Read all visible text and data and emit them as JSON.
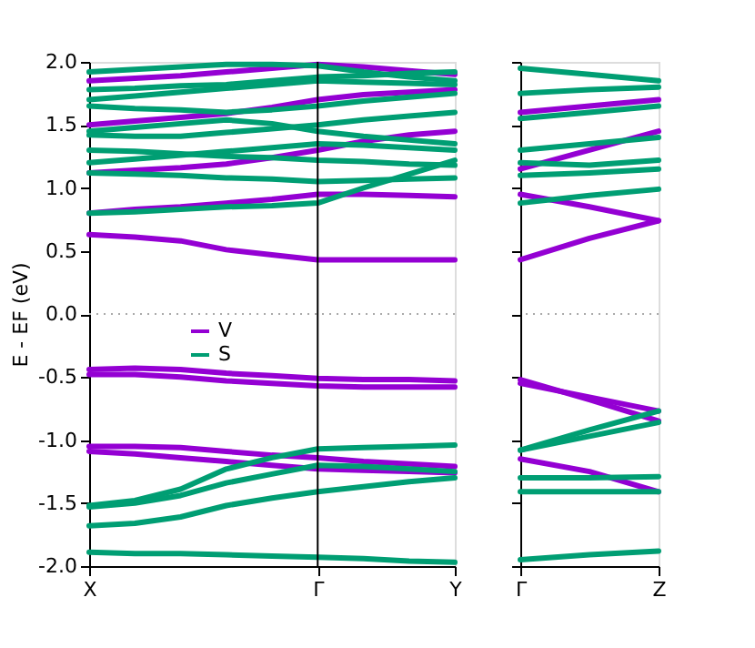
{
  "chart_data": [
    {
      "type": "line",
      "ylabel": "E - EF (eV)",
      "ylim": [
        -2.0,
        2.0
      ],
      "categories": [
        "X",
        null,
        null,
        null,
        null,
        "Γ",
        null,
        null,
        "Y"
      ],
      "yticks": [
        {
          "value": -2.0,
          "label": "-2.0"
        },
        {
          "value": -1.5,
          "label": "-1.5"
        },
        {
          "value": -1.0,
          "label": "-1.0"
        },
        {
          "value": -0.5,
          "label": "-0.5"
        },
        {
          "value": 0.0,
          "label": "0.0"
        },
        {
          "value": 0.5,
          "label": "0.5"
        },
        {
          "value": 1.0,
          "label": "1.0"
        },
        {
          "value": 1.5,
          "label": "1.5"
        },
        {
          "value": 2.0,
          "label": "2.0"
        }
      ],
      "grid": false,
      "legend": "center",
      "line_style": "solid",
      "ref_lines": [
        {
          "axis": "x",
          "value": "Γ",
          "color": "#000000",
          "line_style": "solid"
        },
        {
          "axis": "y",
          "value": 0.0,
          "color": "#aaaaaa",
          "line_style": "dotted"
        }
      ],
      "series": [
        {
          "name": "V",
          "color": "#9400d3",
          "values": [
            0.63,
            0.61,
            0.58,
            0.51,
            0.47,
            0.43,
            0.43,
            0.43,
            0.43
          ]
        },
        {
          "color": "#9400d3",
          "values": [
            0.8,
            0.83,
            0.85,
            0.88,
            0.91,
            0.95,
            0.95,
            0.94,
            0.93
          ]
        },
        {
          "color": "#9400d3",
          "values": [
            -0.44,
            -0.43,
            -0.44,
            -0.47,
            -0.49,
            -0.51,
            -0.52,
            -0.52,
            -0.53
          ]
        },
        {
          "color": "#9400d3",
          "values": [
            -0.48,
            -0.48,
            -0.5,
            -0.53,
            -0.55,
            -0.57,
            -0.58,
            -0.58,
            -0.58
          ]
        },
        {
          "color": "#9400d3",
          "values": [
            -1.05,
            -1.05,
            -1.06,
            -1.09,
            -1.12,
            -1.14,
            -1.17,
            -1.19,
            -1.21
          ]
        },
        {
          "color": "#9400d3",
          "values": [
            -1.09,
            -1.11,
            -1.14,
            -1.17,
            -1.2,
            -1.23,
            -1.24,
            -1.25,
            -1.26
          ]
        },
        {
          "color": "#9400d3",
          "values": [
            1.12,
            1.14,
            1.16,
            1.19,
            1.24,
            1.3,
            1.37,
            1.42,
            1.45
          ]
        },
        {
          "color": "#9400d3",
          "values": [
            1.5,
            1.53,
            1.56,
            1.59,
            1.64,
            1.7,
            1.74,
            1.76,
            1.78
          ]
        },
        {
          "color": "#9400d3",
          "values": [
            1.85,
            1.87,
            1.89,
            1.92,
            1.95,
            1.98,
            1.96,
            1.93,
            1.9
          ]
        },
        {
          "name": "S",
          "color": "#009e73",
          "values": [
            0.8,
            0.81,
            0.83,
            0.85,
            0.86,
            0.88,
            1.0,
            1.11,
            1.22
          ]
        },
        {
          "color": "#009e73",
          "values": [
            -1.52,
            -1.48,
            -1.39,
            -1.23,
            -1.14,
            -1.07,
            -1.06,
            -1.05,
            -1.04
          ]
        },
        {
          "color": "#009e73",
          "values": [
            -1.53,
            -1.5,
            -1.44,
            -1.34,
            -1.27,
            -1.2,
            -1.21,
            -1.23,
            -1.25
          ]
        },
        {
          "color": "#009e73",
          "values": [
            -1.68,
            -1.66,
            -1.61,
            -1.52,
            -1.46,
            -1.41,
            -1.37,
            -1.33,
            -1.3
          ]
        },
        {
          "color": "#009e73",
          "values": [
            -1.89,
            -1.9,
            -1.9,
            -1.91,
            -1.92,
            -1.93,
            -1.94,
            -1.96,
            -1.97
          ]
        },
        {
          "color": "#009e73",
          "values": [
            1.12,
            1.11,
            1.1,
            1.08,
            1.07,
            1.05,
            1.06,
            1.07,
            1.08
          ]
        },
        {
          "color": "#009e73",
          "values": [
            1.2,
            1.23,
            1.26,
            1.29,
            1.32,
            1.35,
            1.34,
            1.32,
            1.3
          ]
        },
        {
          "color": "#009e73",
          "values": [
            1.3,
            1.29,
            1.27,
            1.25,
            1.24,
            1.22,
            1.21,
            1.19,
            1.18
          ]
        },
        {
          "color": "#009e73",
          "values": [
            1.42,
            1.41,
            1.41,
            1.44,
            1.47,
            1.5,
            1.54,
            1.57,
            1.6
          ]
        },
        {
          "color": "#009e73",
          "values": [
            1.45,
            1.48,
            1.51,
            1.54,
            1.51,
            1.45,
            1.41,
            1.38,
            1.35
          ]
        },
        {
          "color": "#009e73",
          "values": [
            1.65,
            1.63,
            1.62,
            1.6,
            1.62,
            1.65,
            1.69,
            1.72,
            1.75
          ]
        },
        {
          "color": "#009e73",
          "values": [
            1.7,
            1.73,
            1.76,
            1.79,
            1.82,
            1.85,
            1.84,
            1.83,
            1.82
          ]
        },
        {
          "color": "#009e73",
          "values": [
            1.78,
            1.79,
            1.81,
            1.82,
            1.85,
            1.88,
            1.89,
            1.91,
            1.92
          ]
        },
        {
          "color": "#009e73",
          "values": [
            1.92,
            1.94,
            1.96,
            1.98,
            1.98,
            1.97,
            1.92,
            1.88,
            1.85
          ]
        }
      ]
    },
    {
      "type": "line",
      "ylim": [
        -2.0,
        2.0
      ],
      "categories": [
        "Γ",
        null,
        "Z"
      ],
      "yticks": [
        {
          "value": -2.0,
          "label": null
        },
        {
          "value": -1.5,
          "label": null
        },
        {
          "value": -1.0,
          "label": null
        },
        {
          "value": -0.5,
          "label": null
        },
        {
          "value": 0.0,
          "label": null
        },
        {
          "value": 0.5,
          "label": null
        },
        {
          "value": 1.0,
          "label": null
        },
        {
          "value": 1.5,
          "label": null
        },
        {
          "value": 2.0,
          "label": null
        }
      ],
      "tick_labels": "x",
      "grid": false,
      "line_style": "solid",
      "ref_lines": [
        {
          "axis": "y",
          "value": 0.0,
          "color": "#aaaaaa",
          "line_style": "dotted"
        }
      ],
      "series": [
        {
          "color": "#9400d3",
          "values": [
            0.43,
            0.6,
            0.74
          ]
        },
        {
          "color": "#9400d3",
          "values": [
            0.95,
            0.85,
            0.74
          ]
        },
        {
          "color": "#9400d3",
          "values": [
            -0.52,
            -0.68,
            -0.85
          ]
        },
        {
          "color": "#9400d3",
          "values": [
            -0.55,
            -0.66,
            -0.77
          ]
        },
        {
          "color": "#9400d3",
          "values": [
            -1.15,
            -1.25,
            -1.41
          ]
        },
        {
          "color": "#9400d3",
          "values": [
            1.15,
            1.3,
            1.45
          ]
        },
        {
          "color": "#9400d3",
          "values": [
            1.6,
            1.65,
            1.7
          ]
        },
        {
          "color": "#009e73",
          "values": [
            0.88,
            0.94,
            0.99
          ]
        },
        {
          "color": "#009e73",
          "values": [
            -1.08,
            -0.92,
            -0.77
          ]
        },
        {
          "color": "#009e73",
          "values": [
            -1.08,
            -0.97,
            -0.86
          ]
        },
        {
          "color": "#009e73",
          "values": [
            -1.3,
            -1.3,
            -1.29
          ]
        },
        {
          "color": "#009e73",
          "values": [
            -1.41,
            -1.41,
            -1.41
          ]
        },
        {
          "color": "#009e73",
          "values": [
            -1.95,
            -1.91,
            -1.88
          ]
        },
        {
          "color": "#009e73",
          "values": [
            1.1,
            1.12,
            1.15
          ]
        },
        {
          "color": "#009e73",
          "values": [
            1.2,
            1.18,
            1.22
          ]
        },
        {
          "color": "#009e73",
          "values": [
            1.3,
            1.35,
            1.4
          ]
        },
        {
          "color": "#009e73",
          "values": [
            1.55,
            1.6,
            1.65
          ]
        },
        {
          "color": "#009e73",
          "values": [
            1.75,
            1.78,
            1.8
          ]
        },
        {
          "color": "#009e73",
          "values": [
            1.95,
            1.9,
            1.85
          ]
        }
      ]
    }
  ]
}
